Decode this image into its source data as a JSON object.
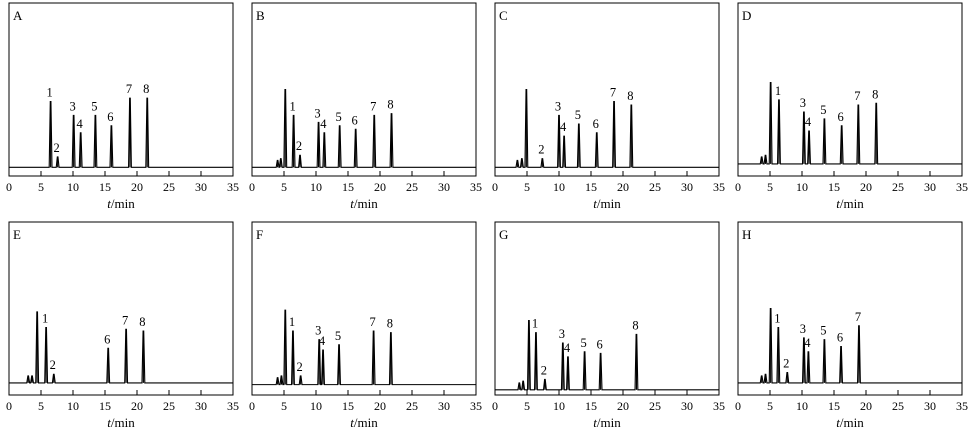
{
  "figure": {
    "xlabel_var": "t",
    "xlabel_unit": "/min",
    "xticks": [
      0,
      5,
      10,
      15,
      20,
      25,
      30,
      35
    ],
    "xlim": [
      0,
      35
    ]
  },
  "chart_data": [
    {
      "type": "line",
      "panel": "A",
      "xlim": [
        0,
        35
      ],
      "xticks": [
        0,
        5,
        10,
        15,
        20,
        25,
        30,
        35
      ],
      "xlabel": "t/min",
      "baseline": 0.05,
      "peaks": [
        {
          "x": 6.5,
          "h": 0.38,
          "label": "1"
        },
        {
          "x": 7.6,
          "h": 0.06,
          "label": "2"
        },
        {
          "x": 10.1,
          "h": 0.3,
          "label": "3"
        },
        {
          "x": 11.2,
          "h": 0.2,
          "label": "4"
        },
        {
          "x": 13.5,
          "h": 0.3,
          "label": "5"
        },
        {
          "x": 16.0,
          "h": 0.24,
          "label": "6"
        },
        {
          "x": 18.9,
          "h": 0.4,
          "label": "7"
        },
        {
          "x": 21.6,
          "h": 0.4,
          "label": "8"
        }
      ]
    },
    {
      "type": "line",
      "panel": "B",
      "xlim": [
        0,
        35
      ],
      "xticks": [
        0,
        5,
        10,
        15,
        20,
        25,
        30,
        35
      ],
      "xlabel": "t/min",
      "baseline": 0.05,
      "peaks": [
        {
          "x": 4.0,
          "h": 0.04,
          "label": ""
        },
        {
          "x": 4.5,
          "h": 0.05,
          "label": ""
        },
        {
          "x": 5.2,
          "h": 0.45,
          "label": ""
        },
        {
          "x": 6.5,
          "h": 0.3,
          "label": "1"
        },
        {
          "x": 7.5,
          "h": 0.07,
          "label": "2"
        },
        {
          "x": 10.4,
          "h": 0.26,
          "label": "3"
        },
        {
          "x": 11.3,
          "h": 0.2,
          "label": "4"
        },
        {
          "x": 13.7,
          "h": 0.24,
          "label": "5"
        },
        {
          "x": 16.2,
          "h": 0.22,
          "label": "6"
        },
        {
          "x": 19.1,
          "h": 0.3,
          "label": "7"
        },
        {
          "x": 21.8,
          "h": 0.31,
          "label": "8"
        }
      ]
    },
    {
      "type": "line",
      "panel": "C",
      "xlim": [
        0,
        35
      ],
      "xticks": [
        0,
        5,
        10,
        15,
        20,
        25,
        30,
        35
      ],
      "xlabel": "t/min",
      "baseline": 0.05,
      "peaks": [
        {
          "x": 3.5,
          "h": 0.04,
          "label": ""
        },
        {
          "x": 4.2,
          "h": 0.05,
          "label": ""
        },
        {
          "x": 4.9,
          "h": 0.45,
          "label": ""
        },
        {
          "x": 7.4,
          "h": 0.05,
          "label": "2"
        },
        {
          "x": 10.0,
          "h": 0.3,
          "label": "3"
        },
        {
          "x": 10.8,
          "h": 0.18,
          "label": "4"
        },
        {
          "x": 13.1,
          "h": 0.25,
          "label": "5"
        },
        {
          "x": 15.9,
          "h": 0.2,
          "label": "6"
        },
        {
          "x": 18.6,
          "h": 0.38,
          "label": "7"
        },
        {
          "x": 21.3,
          "h": 0.36,
          "label": "8"
        }
      ]
    },
    {
      "type": "line",
      "panel": "D",
      "xlim": [
        0,
        35
      ],
      "xticks": [
        0,
        5,
        10,
        15,
        20,
        25,
        30,
        35
      ],
      "xlabel": "t/min",
      "baseline": 0.07,
      "peaks": [
        {
          "x": 3.7,
          "h": 0.04,
          "label": ""
        },
        {
          "x": 4.3,
          "h": 0.05,
          "label": ""
        },
        {
          "x": 5.1,
          "h": 0.47,
          "label": ""
        },
        {
          "x": 6.4,
          "h": 0.37,
          "label": "1"
        },
        {
          "x": 10.3,
          "h": 0.3,
          "label": "3"
        },
        {
          "x": 11.1,
          "h": 0.19,
          "label": "4"
        },
        {
          "x": 13.5,
          "h": 0.26,
          "label": "5"
        },
        {
          "x": 16.2,
          "h": 0.22,
          "label": "6"
        },
        {
          "x": 18.8,
          "h": 0.34,
          "label": "7"
        },
        {
          "x": 21.6,
          "h": 0.35,
          "label": "8"
        }
      ]
    },
    {
      "type": "line",
      "panel": "E",
      "xlim": [
        0,
        35
      ],
      "xticks": [
        0,
        5,
        10,
        15,
        20,
        25,
        30,
        35
      ],
      "xlabel": "t/min",
      "baseline": 0.07,
      "peaks": [
        {
          "x": 3.0,
          "h": 0.04,
          "label": ""
        },
        {
          "x": 3.6,
          "h": 0.04,
          "label": ""
        },
        {
          "x": 4.4,
          "h": 0.41,
          "label": ""
        },
        {
          "x": 5.8,
          "h": 0.32,
          "label": "1"
        },
        {
          "x": 7.0,
          "h": 0.05,
          "label": "2"
        },
        {
          "x": 15.5,
          "h": 0.2,
          "label": "6"
        },
        {
          "x": 18.3,
          "h": 0.31,
          "label": "7"
        },
        {
          "x": 21.0,
          "h": 0.3,
          "label": "8"
        }
      ]
    },
    {
      "type": "line",
      "panel": "F",
      "xlim": [
        0,
        35
      ],
      "xticks": [
        0,
        5,
        10,
        15,
        20,
        25,
        30,
        35
      ],
      "xlabel": "t/min",
      "baseline": 0.06,
      "peaks": [
        {
          "x": 4.0,
          "h": 0.04,
          "label": ""
        },
        {
          "x": 4.6,
          "h": 0.05,
          "label": ""
        },
        {
          "x": 5.2,
          "h": 0.43,
          "label": ""
        },
        {
          "x": 6.4,
          "h": 0.31,
          "label": "1"
        },
        {
          "x": 7.6,
          "h": 0.05,
          "label": "2"
        },
        {
          "x": 10.5,
          "h": 0.26,
          "label": "3"
        },
        {
          "x": 11.1,
          "h": 0.2,
          "label": "4"
        },
        {
          "x": 13.6,
          "h": 0.23,
          "label": "5"
        },
        {
          "x": 19.0,
          "h": 0.31,
          "label": "7"
        },
        {
          "x": 21.7,
          "h": 0.3,
          "label": "8"
        }
      ]
    },
    {
      "type": "line",
      "panel": "G",
      "xlim": [
        0,
        35
      ],
      "xticks": [
        0,
        5,
        10,
        15,
        20,
        25,
        30,
        35
      ],
      "xlabel": "t/min",
      "baseline": 0.03,
      "peaks": [
        {
          "x": 3.8,
          "h": 0.04,
          "label": ""
        },
        {
          "x": 4.4,
          "h": 0.05,
          "label": ""
        },
        {
          "x": 5.3,
          "h": 0.4,
          "label": ""
        },
        {
          "x": 6.4,
          "h": 0.33,
          "label": "1"
        },
        {
          "x": 7.8,
          "h": 0.06,
          "label": "2"
        },
        {
          "x": 10.6,
          "h": 0.27,
          "label": "3"
        },
        {
          "x": 11.4,
          "h": 0.19,
          "label": "4"
        },
        {
          "x": 14.0,
          "h": 0.22,
          "label": "5"
        },
        {
          "x": 16.5,
          "h": 0.21,
          "label": "6"
        },
        {
          "x": 22.1,
          "h": 0.32,
          "label": "8"
        }
      ]
    },
    {
      "type": "line",
      "panel": "H",
      "xlim": [
        0,
        35
      ],
      "xticks": [
        0,
        5,
        10,
        15,
        20,
        25,
        30,
        35
      ],
      "xlabel": "t/min",
      "baseline": 0.07,
      "peaks": [
        {
          "x": 3.7,
          "h": 0.04,
          "label": ""
        },
        {
          "x": 4.3,
          "h": 0.05,
          "label": ""
        },
        {
          "x": 5.1,
          "h": 0.43,
          "label": ""
        },
        {
          "x": 6.3,
          "h": 0.32,
          "label": "1"
        },
        {
          "x": 7.7,
          "h": 0.06,
          "label": "2"
        },
        {
          "x": 10.3,
          "h": 0.26,
          "label": "3"
        },
        {
          "x": 11.0,
          "h": 0.18,
          "label": "4"
        },
        {
          "x": 13.5,
          "h": 0.25,
          "label": "5"
        },
        {
          "x": 16.1,
          "h": 0.21,
          "label": "6"
        },
        {
          "x": 18.9,
          "h": 0.33,
          "label": "7"
        }
      ]
    }
  ]
}
